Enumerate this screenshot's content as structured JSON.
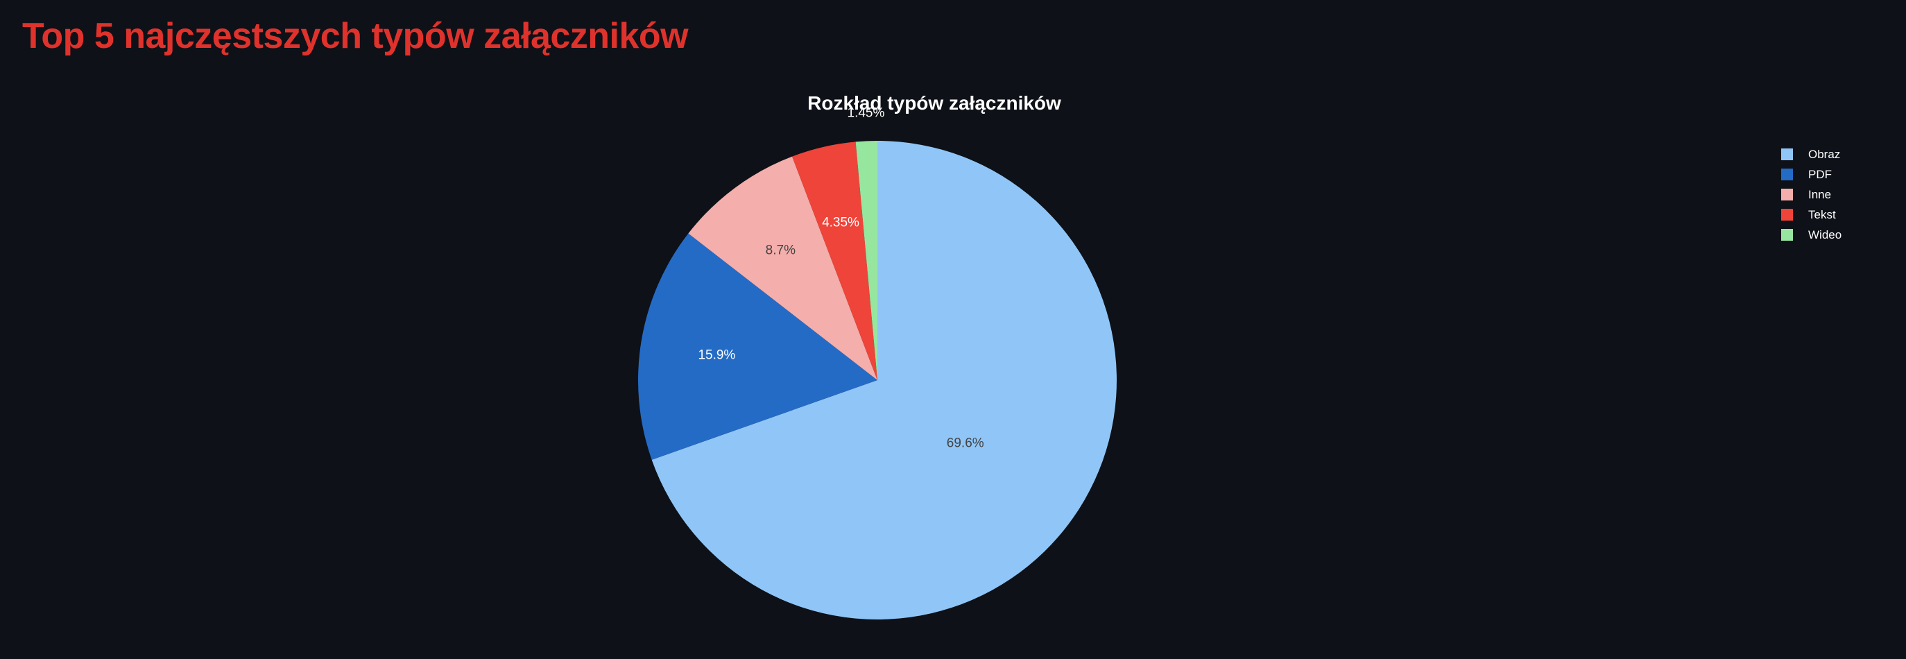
{
  "page": {
    "title": "Top 5 najczęstszych typów załączników"
  },
  "chart_data": {
    "type": "pie",
    "title": "Rozkład typów załączników",
    "legend_position": "top-right",
    "slices": [
      {
        "label": "Obraz",
        "value": 69.6,
        "text": "69.6%",
        "color": "#90c6f7",
        "text_color": "#444444"
      },
      {
        "label": "PDF",
        "value": 15.9,
        "text": "15.9%",
        "color": "#246bc6",
        "text_color": "#ffffff"
      },
      {
        "label": "Inne",
        "value": 8.7,
        "text": "8.7%",
        "color": "#f4aeab",
        "text_color": "#444444"
      },
      {
        "label": "Tekst",
        "value": 4.35,
        "text": "4.35%",
        "color": "#ee443a",
        "text_color": "#ffffff"
      },
      {
        "label": "Wideo",
        "value": 1.45,
        "text": "1.45%",
        "color": "#97e6a0",
        "text_color": "#ffffff"
      }
    ]
  }
}
